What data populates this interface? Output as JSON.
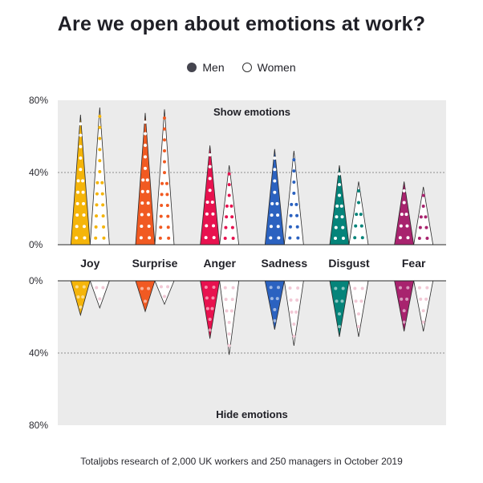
{
  "title": "Are we open about emotions at work?",
  "legend": {
    "men": "Men",
    "women": "Women"
  },
  "footnote": "Totaljobs research of 2,000 UK workers and 250 managers in October 2019",
  "chart_data": {
    "type": "bar",
    "title": "Are we open about emotions at work?",
    "categories": [
      "Joy",
      "Surprise",
      "Anger",
      "Sadness",
      "Disgust",
      "Fear"
    ],
    "top_section_label": "Show emotions",
    "bottom_section_label": "Hide emotions",
    "top_ticks": [
      "80%",
      "40%",
      "0%"
    ],
    "bottom_ticks": [
      "0%",
      "40%",
      "80%"
    ],
    "ylim": [
      0,
      80
    ],
    "unit": "%",
    "gridlines": true,
    "legend_position": "top-center",
    "show_emotions": [
      {
        "name": "Men",
        "values": [
          72,
          73,
          55,
          53,
          44,
          35
        ]
      },
      {
        "name": "Women",
        "values": [
          76,
          75,
          44,
          52,
          35,
          32
        ]
      }
    ],
    "hide_emotions": [
      {
        "name": "Men",
        "values": [
          19,
          17,
          32,
          27,
          31,
          28
        ]
      },
      {
        "name": "Women",
        "values": [
          15,
          13,
          41,
          36,
          31,
          28
        ]
      }
    ],
    "colors": {
      "Joy": "#f5b50a",
      "Surprise": "#f15a22",
      "Anger": "#e8124f",
      "Sadness": "#2b62c0",
      "Disgust": "#05847a",
      "Fear": "#a8236e",
      "panel": "#ebebeb",
      "grid": "#8f8f8f",
      "outline": "#2a2a2a"
    }
  }
}
